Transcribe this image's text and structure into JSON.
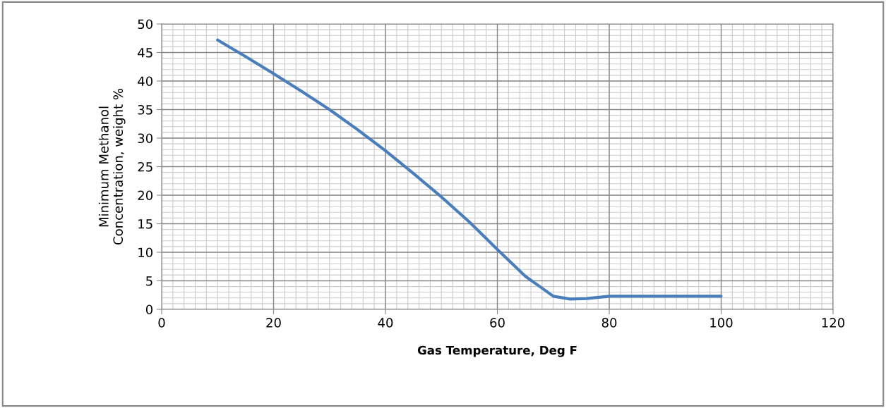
{
  "chart_data": {
    "type": "line",
    "xlabel": "Gas Temperature, Deg F",
    "ylabel": "Minimum Methanol\nConcentration, weight %",
    "x": [
      10,
      15,
      20,
      25,
      30,
      35,
      40,
      45,
      50,
      55,
      60,
      65,
      70,
      73,
      76,
      80,
      85,
      90,
      95,
      100
    ],
    "series": [
      {
        "color": "#4a7ebb",
        "values": [
          47.2,
          44.3,
          41.3,
          38.2,
          35.0,
          31.5,
          27.8,
          23.8,
          19.7,
          15.3,
          10.5,
          5.8,
          2.3,
          1.8,
          1.9,
          2.3,
          2.3,
          2.3,
          2.3,
          2.3
        ]
      }
    ],
    "xlim": [
      0,
      120
    ],
    "xticks": [
      0,
      20,
      40,
      60,
      80,
      100,
      120
    ],
    "ylim": [
      0,
      50
    ],
    "yticks": [
      0,
      5,
      10,
      15,
      20,
      25,
      30,
      35,
      40,
      45,
      50
    ],
    "grid": true,
    "marker": "none",
    "line_style": "solid"
  }
}
